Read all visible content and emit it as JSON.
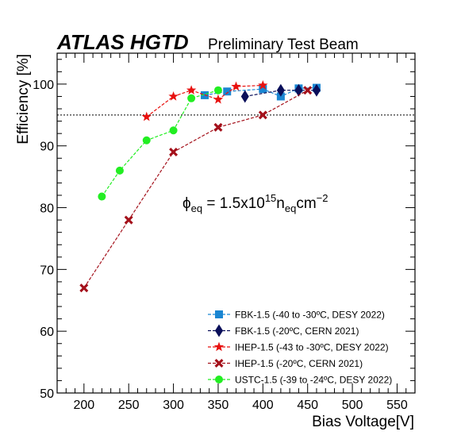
{
  "header": {
    "experiment": "ATLAS HGTD",
    "subtitle": "Preliminary Test Beam"
  },
  "fluence": {
    "phi": "ϕ",
    "phi_sub": "eq",
    "eq_prefix": " = 1.5x10",
    "exp": "15",
    "n": "n",
    "n_sub": "eq",
    "unit": "cm",
    "unit_exp": "−2"
  },
  "chart_data": {
    "type": "line",
    "xlabel": "Bias Voltage[V]",
    "ylabel": "Efficiency [%]",
    "xlim": [
      170,
      570
    ],
    "ylim": [
      50,
      105
    ],
    "xticks": [
      200,
      250,
      300,
      350,
      400,
      450,
      500,
      550
    ],
    "yticks": [
      50,
      60,
      70,
      80,
      90,
      100
    ],
    "reference_line": 95,
    "legend_position": "bottom-right",
    "grid": false,
    "series": [
      {
        "name": "FBK-1.5 (-40 to -30ºC, DESY 2022)",
        "color": "#1a86d2",
        "marker": "square",
        "x": [
          335,
          360,
          400,
          420,
          440,
          460
        ],
        "y": [
          98.2,
          98.8,
          99.2,
          98.0,
          99.3,
          99.4
        ]
      },
      {
        "name": "FBK-1.5 (-20ºC, CERN 2021)",
        "color": "#0a0f5a",
        "marker": "diamond",
        "x": [
          380,
          420,
          440,
          460
        ],
        "y": [
          98.0,
          99.0,
          99.0,
          99.0
        ]
      },
      {
        "name": "IHEP-1.5 (-43 to -30ºC, DESY 2022)",
        "color": "#e8110f",
        "marker": "star",
        "x": [
          270,
          300,
          320,
          350,
          370,
          400
        ],
        "y": [
          94.7,
          98.0,
          99.0,
          97.5,
          99.6,
          99.8
        ]
      },
      {
        "name": "IHEP-1.5 (-20ºC, CERN 2021)",
        "color": "#a4111b",
        "marker": "cross",
        "x": [
          200,
          250,
          300,
          350,
          400,
          450
        ],
        "y": [
          67.0,
          78.0,
          89.0,
          93.0,
          95.0,
          99.0
        ]
      },
      {
        "name": "USTC-1.5 (-39 to -24ºC, DESY 2022)",
        "color": "#22ee22",
        "marker": "circle",
        "x": [
          220,
          240,
          270,
          300,
          320,
          350
        ],
        "y": [
          81.8,
          86.0,
          90.9,
          92.5,
          97.7,
          99.0
        ]
      }
    ]
  }
}
